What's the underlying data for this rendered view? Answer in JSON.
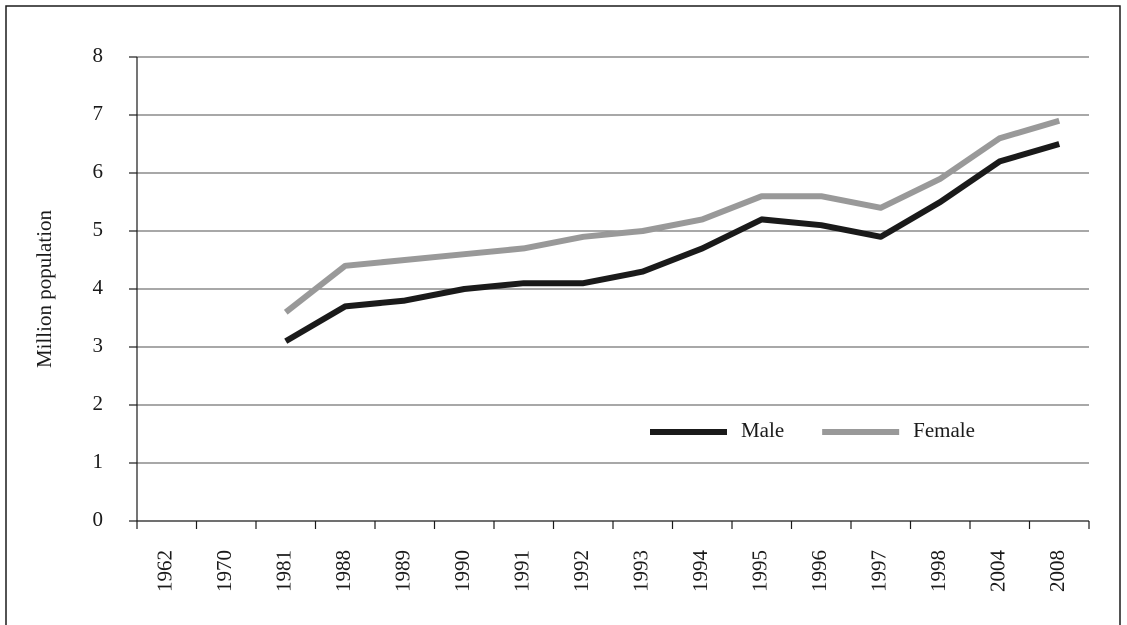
{
  "chart_data": {
    "type": "line",
    "y_label": "Million population",
    "categories": [
      "1962",
      "1970",
      "1981",
      "1988",
      "1989",
      "1990",
      "1991",
      "1992",
      "1993",
      "1994",
      "1995",
      "1996",
      "1997",
      "1998",
      "2004",
      "2008"
    ],
    "series": [
      {
        "name": "Male",
        "color": "#1a1a1a",
        "values": [
          null,
          null,
          3.1,
          3.7,
          3.8,
          4.0,
          4.1,
          4.1,
          4.3,
          4.7,
          5.2,
          5.1,
          4.9,
          5.5,
          6.2,
          6.5
        ]
      },
      {
        "name": "Female",
        "color": "#999999",
        "values": [
          null,
          null,
          3.6,
          4.4,
          4.5,
          4.6,
          4.7,
          4.9,
          5.0,
          5.2,
          5.6,
          5.6,
          5.4,
          5.9,
          6.6,
          6.9
        ]
      }
    ],
    "ylim": [
      0,
      8
    ],
    "yticks": [
      0,
      1,
      2,
      3,
      4,
      5,
      6,
      7,
      8
    ],
    "grid": true,
    "legend": "lower right"
  }
}
